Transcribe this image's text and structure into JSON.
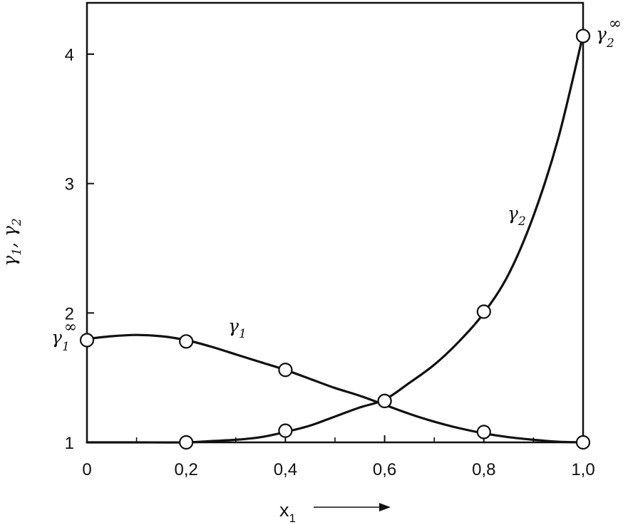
{
  "chart_data": {
    "type": "line",
    "xlabel": "x",
    "xlabel_sub": "1",
    "ylabel_parts": [
      "γ",
      "1",
      ", ",
      "γ",
      "2"
    ],
    "x_ticks": [
      "0",
      "0,2",
      "0,4",
      "0,6",
      "0,8",
      "1,0"
    ],
    "x_tick_values": [
      0,
      0.2,
      0.4,
      0.6,
      0.8,
      1.0
    ],
    "y_ticks": [
      "1",
      "2",
      "3",
      "4"
    ],
    "y_tick_values": [
      1,
      2,
      3,
      4
    ],
    "xlim": [
      0,
      1.0
    ],
    "ylim": [
      1,
      4.4
    ],
    "grid": false,
    "series": [
      {
        "name": "γ1",
        "label_main": "γ",
        "label_sub": "1",
        "curve": {
          "x": [
            0,
            0.05,
            0.1,
            0.15,
            0.2,
            0.25,
            0.3,
            0.35,
            0.4,
            0.45,
            0.5,
            0.55,
            0.6,
            0.65,
            0.7,
            0.75,
            0.8,
            0.85,
            0.9,
            0.95,
            1.0
          ],
          "y": [
            1.8,
            1.82,
            1.83,
            1.82,
            1.79,
            1.74,
            1.68,
            1.62,
            1.56,
            1.49,
            1.42,
            1.36,
            1.29,
            1.22,
            1.16,
            1.11,
            1.07,
            1.04,
            1.02,
            1.005,
            1.0
          ]
        },
        "points": {
          "x": [
            0,
            0.2,
            0.4,
            0.6,
            0.8,
            1.0
          ],
          "y": [
            1.79,
            1.78,
            1.56,
            1.32,
            1.08,
            1.0
          ]
        }
      },
      {
        "name": "γ2",
        "label_main": "γ",
        "label_sub": "2",
        "curve": {
          "x": [
            0,
            0.1,
            0.2,
            0.25,
            0.3,
            0.35,
            0.4,
            0.45,
            0.5,
            0.55,
            0.6,
            0.65,
            0.7,
            0.75,
            0.8,
            0.85,
            0.9,
            0.95,
            1.0
          ],
          "y": [
            1.0,
            1.0,
            1.0,
            1.01,
            1.02,
            1.04,
            1.08,
            1.13,
            1.2,
            1.27,
            1.33,
            1.46,
            1.6,
            1.78,
            2.0,
            2.3,
            2.75,
            3.35,
            4.15
          ]
        },
        "points": {
          "x": [
            0.2,
            0.4,
            0.6,
            0.8,
            1.0
          ],
          "y": [
            1.0,
            1.09,
            1.32,
            2.01,
            4.14
          ]
        }
      }
    ],
    "annotations": {
      "gamma1_inf": {
        "main": "γ",
        "sub": "1",
        "sup": "∞"
      },
      "gamma2_inf": {
        "main": "γ",
        "sub": "2",
        "sup": "∞"
      }
    }
  }
}
